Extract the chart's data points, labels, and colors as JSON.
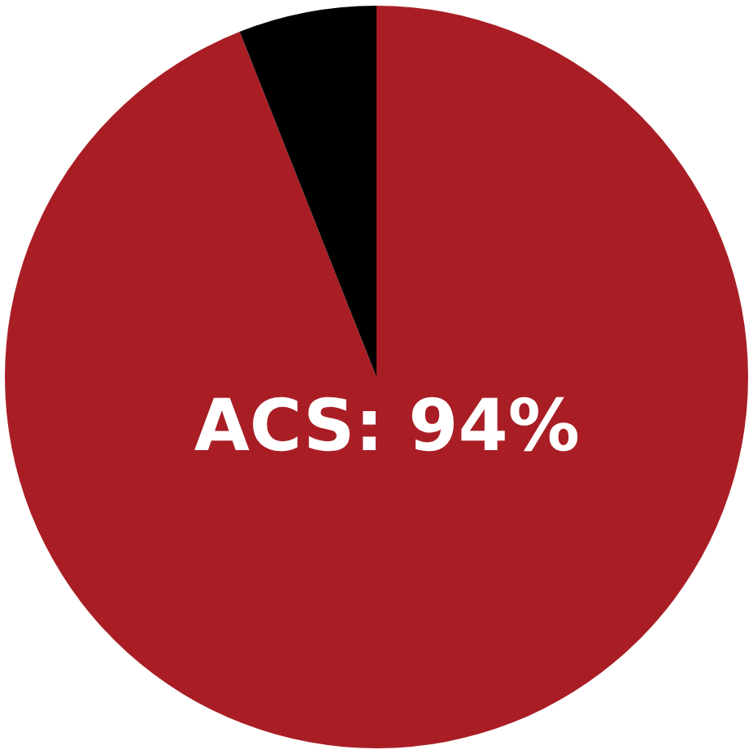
{
  "chart_data": {
    "type": "pie",
    "categories": [
      "ACS",
      null
    ],
    "values": [
      94,
      6
    ],
    "colors": [
      "#a91e25",
      "#000000"
    ],
    "value_labels": [
      "94%",
      null
    ],
    "legend": false
  }
}
